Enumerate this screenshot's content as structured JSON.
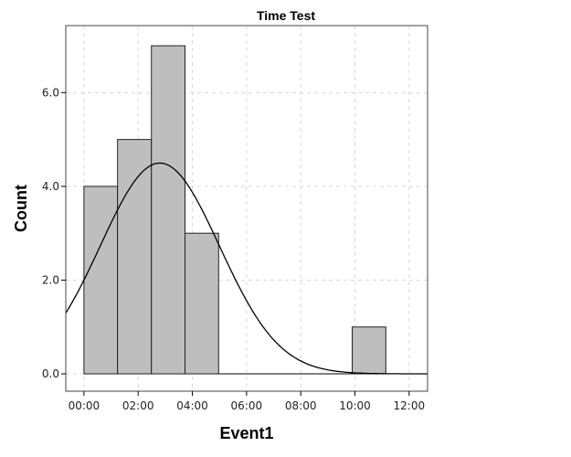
{
  "chart_data": {
    "type": "bar",
    "subtype": "histogram",
    "title": "Time Test",
    "xlabel": "Event1",
    "ylabel": "Count",
    "x_units": "hours",
    "xlim": [
      -0.67,
      12.68
    ],
    "ylim": [
      -0.37,
      7.43
    ],
    "x_ticks": [
      0,
      2,
      4,
      6,
      8,
      10,
      12
    ],
    "x_tick_labels": [
      "00:00",
      "02:00",
      "04:00",
      "06:00",
      "08:00",
      "10:00",
      "12:00"
    ],
    "y_ticks": [
      0,
      2,
      4,
      6
    ],
    "y_tick_labels": [
      "0.0",
      "2.0",
      "4.0",
      "6.0"
    ],
    "grid": true,
    "bins": [
      {
        "start": 0.0,
        "end": 1.24,
        "count": 4
      },
      {
        "start": 1.24,
        "end": 2.49,
        "count": 5
      },
      {
        "start": 2.49,
        "end": 3.73,
        "count": 7
      },
      {
        "start": 3.73,
        "end": 4.97,
        "count": 3
      },
      {
        "start": 9.9,
        "end": 11.14,
        "count": 1
      }
    ],
    "normal_curve": {
      "mean": 2.8,
      "std": 2.2,
      "n": 20,
      "bin_width": 1.24
    },
    "bar_color": "#bebebe",
    "curve_color": "#000000"
  }
}
